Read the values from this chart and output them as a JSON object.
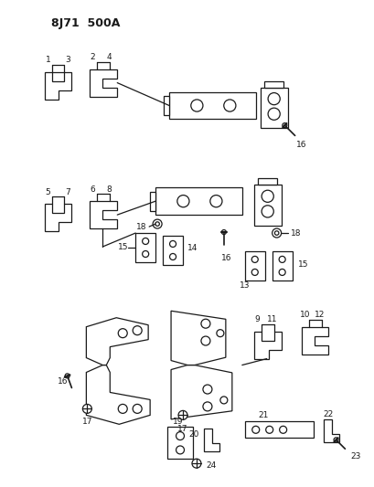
{
  "title": "8J71 500A",
  "bg": "#ffffff",
  "lc": "#1a1a1a",
  "fig_w": 4.1,
  "fig_h": 5.33,
  "dpi": 100
}
